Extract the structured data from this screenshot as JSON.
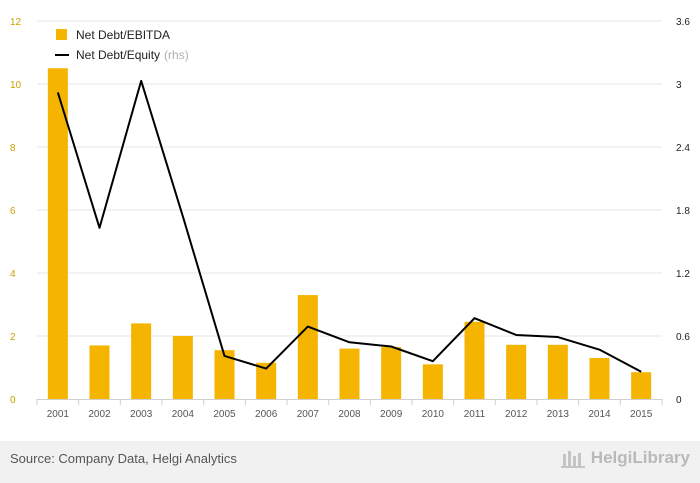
{
  "chart_data": {
    "type": "bar",
    "categories": [
      "2001",
      "2002",
      "2003",
      "2004",
      "2005",
      "2006",
      "2007",
      "2008",
      "2009",
      "2010",
      "2011",
      "2012",
      "2013",
      "2014",
      "2015"
    ],
    "series": [
      {
        "name": "Net Debt/EBITDA",
        "type": "bar",
        "axis": "left",
        "color": "#f5b400",
        "values": [
          10.5,
          1.7,
          2.4,
          2.0,
          1.55,
          1.15,
          3.3,
          1.6,
          1.65,
          1.1,
          2.45,
          1.72,
          1.72,
          1.3,
          0.85
        ]
      },
      {
        "name": "Net Debt/Equity",
        "type": "line",
        "axis": "right",
        "color": "#000000",
        "values": [
          2.92,
          1.63,
          3.03,
          1.74,
          0.41,
          0.29,
          0.69,
          0.54,
          0.5,
          0.36,
          0.77,
          0.61,
          0.59,
          0.47,
          0.26
        ]
      }
    ],
    "legend": [
      {
        "label": "Net Debt/EBITDA",
        "note": ""
      },
      {
        "label": "Net Debt/Equity",
        "note": "(rhs)"
      }
    ],
    "left_axis": {
      "min": 0,
      "max": 12,
      "ticks": [
        0,
        2,
        4,
        6,
        8,
        10,
        12
      ],
      "tick_labels": [
        "0",
        "2",
        "4",
        "6",
        "8",
        "10",
        "12"
      ]
    },
    "right_axis": {
      "min": 0,
      "max": 3.6,
      "ticks": [
        0,
        0.6,
        1.2,
        1.8,
        2.4,
        3,
        3.6
      ],
      "tick_labels": [
        "0",
        "0.6",
        "1.2",
        "1.8",
        "2.4",
        "3",
        "3.6"
      ]
    },
    "grid": true,
    "legend_position": "top-left"
  },
  "footer": {
    "source": "Source: Company Data, Helgi Analytics",
    "brand": "HelgiLibrary"
  },
  "colors": {
    "bar": "#f5b400",
    "line": "#000000",
    "grid": "#e6e6e6",
    "footer_bg": "#f1f1f1"
  }
}
